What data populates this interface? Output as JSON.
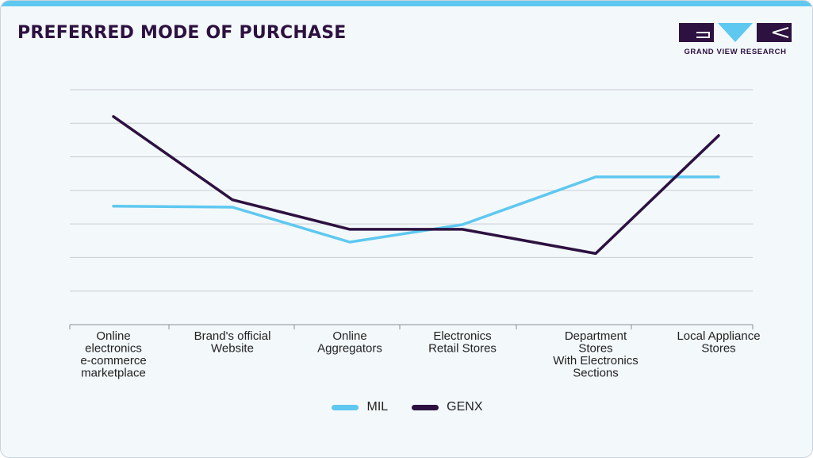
{
  "header": {
    "title": "PREFERRED MODE OF PURCHASE",
    "brand": "GRAND VIEW RESEARCH"
  },
  "colors": {
    "accent_bar": "#5ec8f0",
    "title": "#2d1140",
    "mil": "#5ec8f0",
    "genx": "#2d1140",
    "grid": "#c9cdd2"
  },
  "chart_data": {
    "type": "line",
    "title": "PREFERRED MODE OF PURCHASE",
    "xlabel": "",
    "ylabel": "",
    "ylim": [
      0,
      7
    ],
    "grid": true,
    "legend_position": "bottom-center",
    "categories": [
      [
        "Online",
        "electronics",
        "e-commerce",
        "marketplace"
      ],
      [
        "Brand's official",
        "Website"
      ],
      [
        "Online",
        "Aggregators"
      ],
      [
        "Electronics",
        "Retail Stores"
      ],
      [
        "Department",
        "Stores",
        "With Electronics",
        "Sections"
      ],
      [
        "Local Appliance",
        "Stores"
      ]
    ],
    "series": [
      {
        "name": "MIL",
        "color": "#5ec8f0",
        "values": [
          3.53,
          3.5,
          2.46,
          2.98,
          4.4,
          4.4
        ]
      },
      {
        "name": "GENX",
        "color": "#2d1140",
        "values": [
          6.2,
          3.72,
          2.84,
          2.84,
          2.12,
          5.63
        ]
      }
    ]
  }
}
